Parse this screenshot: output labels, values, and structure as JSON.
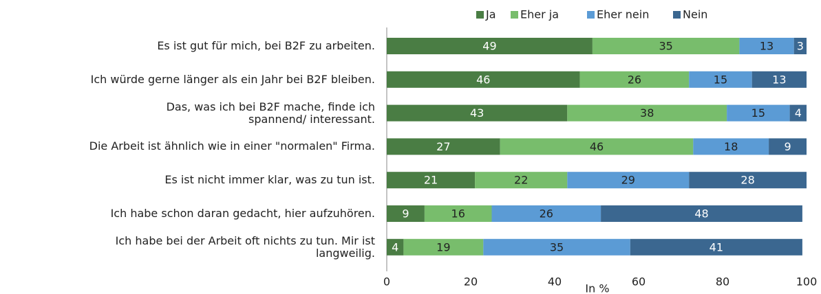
{
  "chart_data": {
    "type": "stacked-bar-horizontal",
    "categories": [
      "Es ist gut für mich, bei B2F zu arbeiten.",
      "Ich würde gerne länger als ein Jahr bei B2F bleiben.",
      "Das, was ich bei B2F mache, finde ich\nspannend/ interessant.",
      "Die Arbeit ist ähnlich wie in einer \"normalen\" Firma.",
      "Es ist nicht immer klar, was zu tun ist.",
      "Ich habe schon daran gedacht, hier aufzuhören.",
      "Ich habe bei der Arbeit oft nichts zu tun. Mir ist\nlangweilig."
    ],
    "series": [
      {
        "name": "Ja",
        "color": "#4a7d44",
        "values": [
          49,
          46,
          43,
          27,
          21,
          9,
          4
        ]
      },
      {
        "name": "Eher ja",
        "color": "#78bd6c",
        "values": [
          35,
          26,
          38,
          46,
          22,
          16,
          19
        ]
      },
      {
        "name": "Eher nein",
        "color": "#5b9bd5",
        "values": [
          13,
          15,
          15,
          18,
          29,
          26,
          35
        ]
      },
      {
        "name": "Nein",
        "color": "#3b6790",
        "values": [
          3,
          13,
          4,
          9,
          28,
          48,
          41
        ]
      }
    ],
    "xlabel": "In %",
    "xlim": [
      0,
      100
    ],
    "xticks": [
      0,
      20,
      40,
      60,
      80,
      100
    ],
    "legend": "top"
  }
}
